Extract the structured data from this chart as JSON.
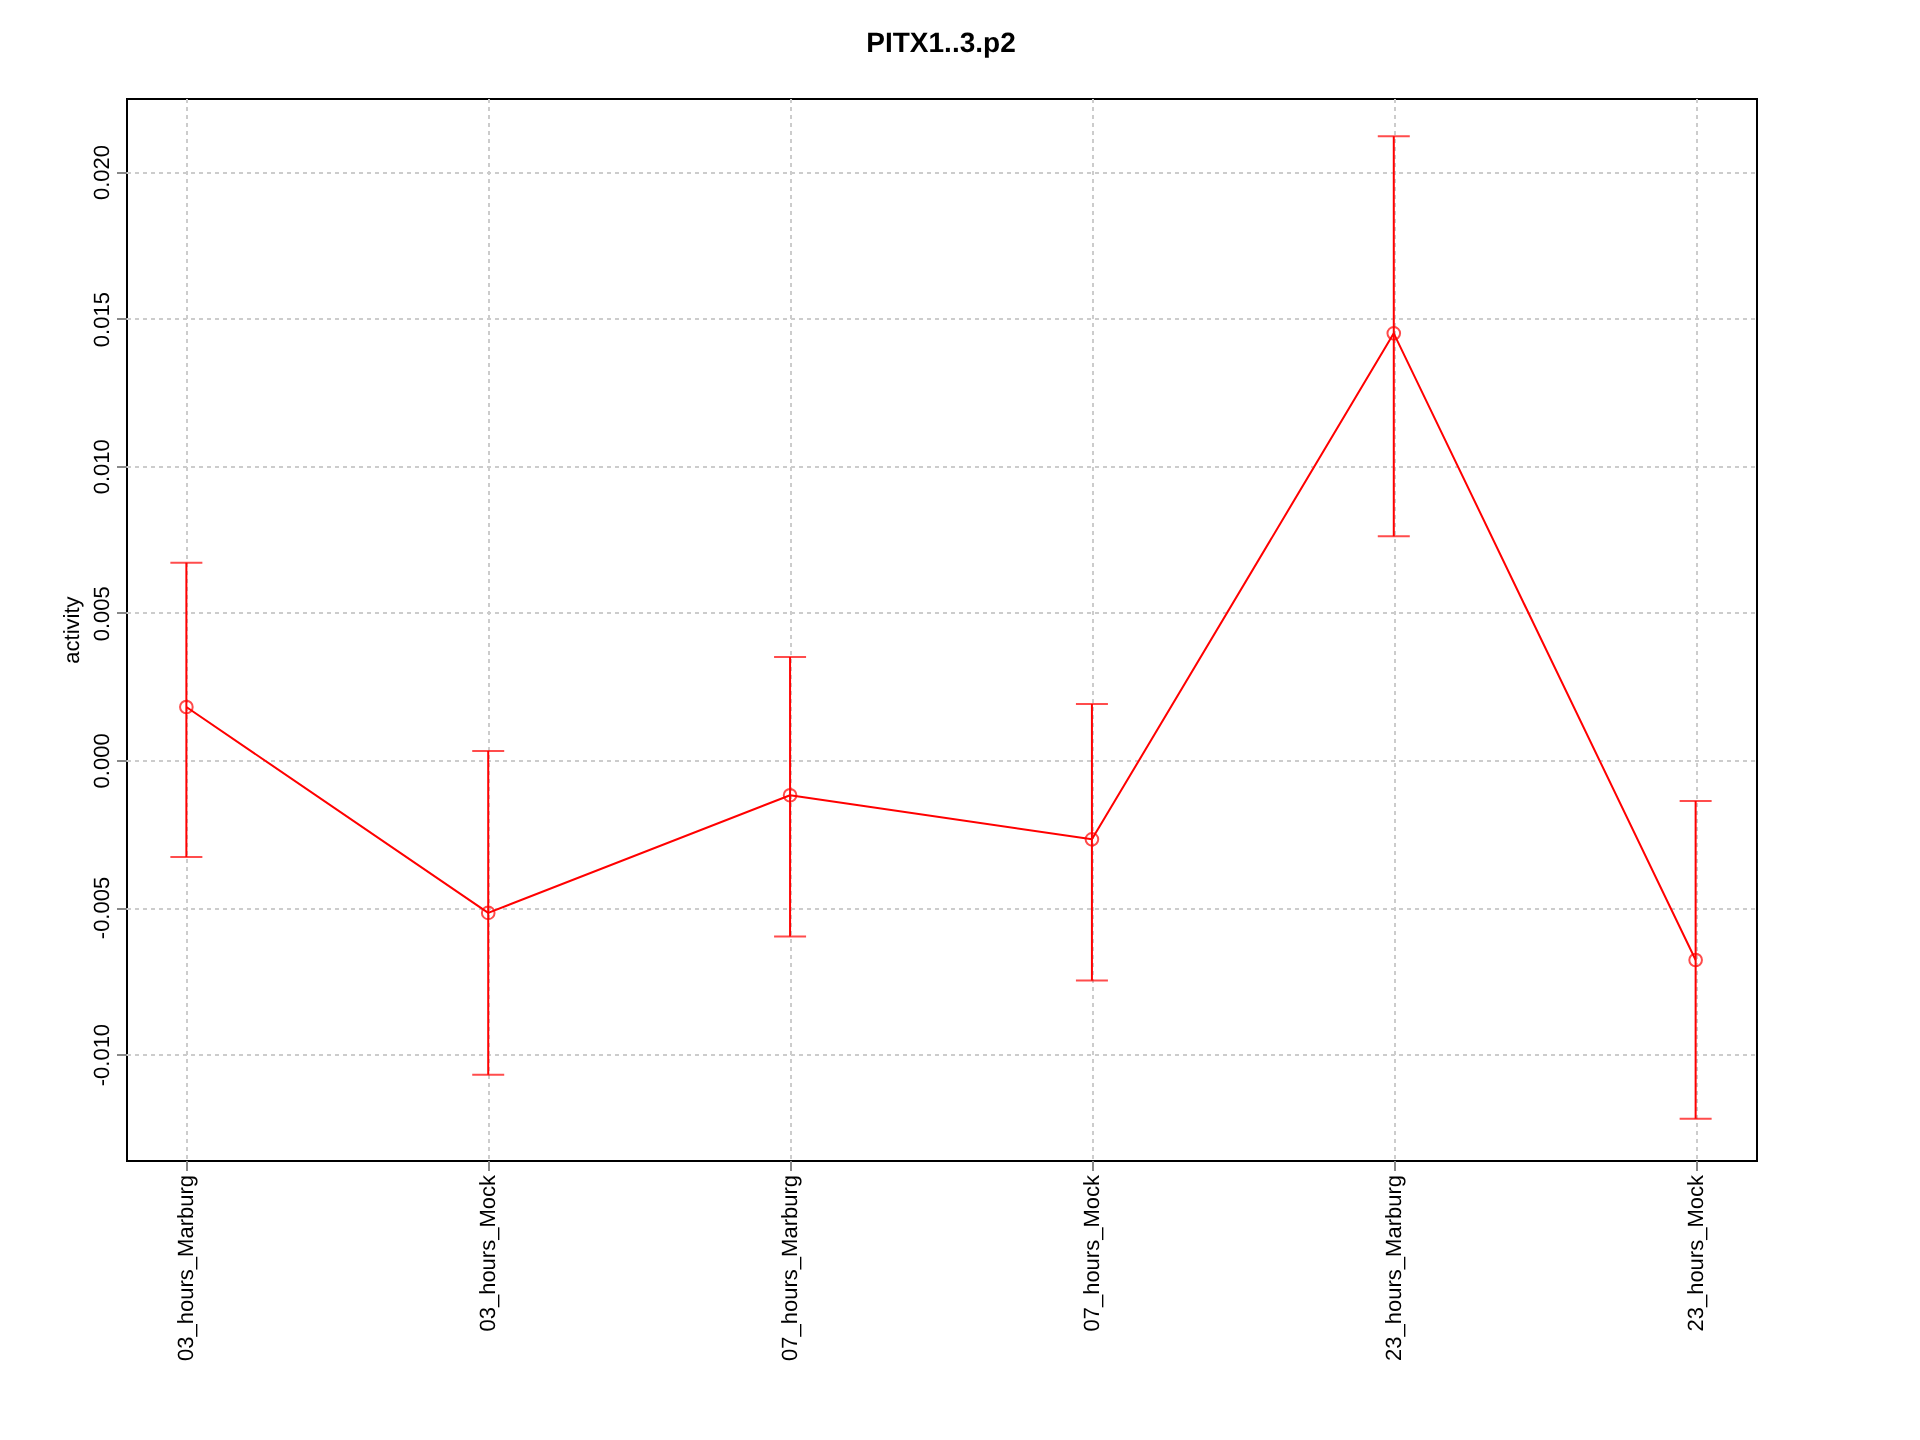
{
  "chart_data": {
    "type": "line",
    "title": "PITX1..3.p2",
    "ylabel": "activity",
    "categories": [
      "03_hours_Marburg",
      "03_hours_Mock",
      "07_hours_Marburg",
      "07_hours_Mock",
      "23_hours_Marburg",
      "23_hours_Mock"
    ],
    "series": [
      {
        "color": "#ff0000",
        "values": [
          0.0018,
          -0.0052,
          -0.0012,
          -0.0027,
          0.0145,
          -0.0068
        ],
        "errors": [
          [
            -0.0033,
            0.0067
          ],
          [
            -0.0107,
            0.0003
          ],
          [
            -0.006,
            0.0035
          ],
          [
            -0.0075,
            0.0019
          ],
          [
            0.0076,
            0.0212
          ],
          [
            -0.0122,
            -0.0014
          ]
        ]
      }
    ],
    "ylim": [
      -0.0136,
      0.0225
    ],
    "yticks": [
      {
        "value": -0.01,
        "label": "-0.010"
      },
      {
        "value": -0.005,
        "label": "-0.005"
      },
      {
        "value": 0,
        "label": "0.000"
      },
      {
        "value": 0.005,
        "label": "0.005"
      },
      {
        "value": 0.01,
        "label": "0.010"
      },
      {
        "value": 0.015,
        "label": "0.015"
      },
      {
        "value": 0.02,
        "label": "0.020"
      }
    ],
    "grid": true,
    "marker": "circle",
    "line_style": "solid"
  }
}
